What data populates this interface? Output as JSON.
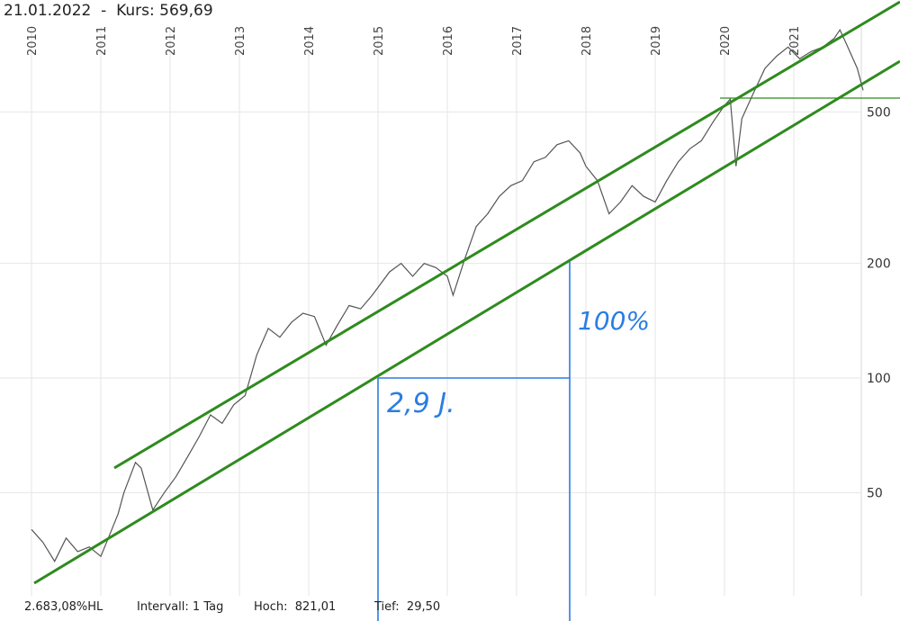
{
  "header": {
    "date": "21.01.2022",
    "separator": "-",
    "price_label": "Kurs:",
    "price_value": "569,69"
  },
  "footer": {
    "performance": "2.683,08%HL",
    "interval_label": "Intervall:",
    "interval_value": "1 Tag",
    "high_label": "Hoch:",
    "high_value": "821,01",
    "low_label": "Tief:",
    "low_value": "29,50"
  },
  "annotations": {
    "duration": "2,9 J.",
    "gain": "100%"
  },
  "colors": {
    "price_line": "#555555",
    "channel": "#2e8b1e",
    "measure": "#2a7de1",
    "grid": "#e6e6e6"
  },
  "chart_data": {
    "type": "line",
    "title": "",
    "xlabel": "",
    "ylabel": "",
    "y_scale": "log",
    "x_ticks": [
      "2010",
      "2011",
      "2012",
      "2013",
      "2014",
      "2015",
      "2016",
      "2017",
      "2018",
      "2019",
      "2020",
      "2021"
    ],
    "y_ticks": [
      50,
      100,
      200,
      500
    ],
    "ylim": [
      29.5,
      900
    ],
    "grid": true,
    "series": [
      {
        "values": [
          {
            "x": "2010-01",
            "y": 40
          },
          {
            "x": "2010-03",
            "y": 37
          },
          {
            "x": "2010-05",
            "y": 33
          },
          {
            "x": "2010-07",
            "y": 38
          },
          {
            "x": "2010-09",
            "y": 35
          },
          {
            "x": "2010-11",
            "y": 36
          },
          {
            "x": "2011-01",
            "y": 34
          },
          {
            "x": "2011-02",
            "y": 37
          },
          {
            "x": "2011-04",
            "y": 44
          },
          {
            "x": "2011-05",
            "y": 50
          },
          {
            "x": "2011-07",
            "y": 60
          },
          {
            "x": "2011-08",
            "y": 58
          },
          {
            "x": "2011-10",
            "y": 45
          },
          {
            "x": "2011-12",
            "y": 50
          },
          {
            "x": "2012-02",
            "y": 55
          },
          {
            "x": "2012-04",
            "y": 62
          },
          {
            "x": "2012-06",
            "y": 70
          },
          {
            "x": "2012-08",
            "y": 80
          },
          {
            "x": "2012-10",
            "y": 76
          },
          {
            "x": "2012-12",
            "y": 85
          },
          {
            "x": "2013-02",
            "y": 90
          },
          {
            "x": "2013-04",
            "y": 115
          },
          {
            "x": "2013-06",
            "y": 135
          },
          {
            "x": "2013-08",
            "y": 128
          },
          {
            "x": "2013-10",
            "y": 140
          },
          {
            "x": "2013-12",
            "y": 148
          },
          {
            "x": "2014-02",
            "y": 145
          },
          {
            "x": "2014-04",
            "y": 122
          },
          {
            "x": "2014-06",
            "y": 138
          },
          {
            "x": "2014-08",
            "y": 155
          },
          {
            "x": "2014-10",
            "y": 152
          },
          {
            "x": "2014-12",
            "y": 165
          },
          {
            "x": "2015-03",
            "y": 190
          },
          {
            "x": "2015-05",
            "y": 200
          },
          {
            "x": "2015-07",
            "y": 185
          },
          {
            "x": "2015-09",
            "y": 200
          },
          {
            "x": "2015-11",
            "y": 195
          },
          {
            "x": "2016-01",
            "y": 185
          },
          {
            "x": "2016-02",
            "y": 165
          },
          {
            "x": "2016-04",
            "y": 205
          },
          {
            "x": "2016-06",
            "y": 250
          },
          {
            "x": "2016-08",
            "y": 270
          },
          {
            "x": "2016-10",
            "y": 300
          },
          {
            "x": "2016-12",
            "y": 320
          },
          {
            "x": "2017-02",
            "y": 330
          },
          {
            "x": "2017-04",
            "y": 370
          },
          {
            "x": "2017-06",
            "y": 380
          },
          {
            "x": "2017-08",
            "y": 410
          },
          {
            "x": "2017-10",
            "y": 420
          },
          {
            "x": "2017-12",
            "y": 390
          },
          {
            "x": "2018-01",
            "y": 360
          },
          {
            "x": "2018-03",
            "y": 330
          },
          {
            "x": "2018-05",
            "y": 270
          },
          {
            "x": "2018-07",
            "y": 290
          },
          {
            "x": "2018-09",
            "y": 320
          },
          {
            "x": "2018-11",
            "y": 300
          },
          {
            "x": "2019-01",
            "y": 290
          },
          {
            "x": "2019-03",
            "y": 330
          },
          {
            "x": "2019-05",
            "y": 370
          },
          {
            "x": "2019-07",
            "y": 400
          },
          {
            "x": "2019-09",
            "y": 420
          },
          {
            "x": "2019-11",
            "y": 470
          },
          {
            "x": "2020-01",
            "y": 520
          },
          {
            "x": "2020-02",
            "y": 540
          },
          {
            "x": "2020-03",
            "y": 360
          },
          {
            "x": "2020-04",
            "y": 480
          },
          {
            "x": "2020-06",
            "y": 560
          },
          {
            "x": "2020-08",
            "y": 650
          },
          {
            "x": "2020-10",
            "y": 700
          },
          {
            "x": "2020-12",
            "y": 740
          },
          {
            "x": "2021-02",
            "y": 690
          },
          {
            "x": "2021-04",
            "y": 720
          },
          {
            "x": "2021-06",
            "y": 740
          },
          {
            "x": "2021-08",
            "y": 780
          },
          {
            "x": "2021-09",
            "y": 821
          },
          {
            "x": "2021-10",
            "y": 760
          },
          {
            "x": "2021-12",
            "y": 650
          },
          {
            "x": "2022-01",
            "y": 569.69
          }
        ]
      }
    ]
  }
}
